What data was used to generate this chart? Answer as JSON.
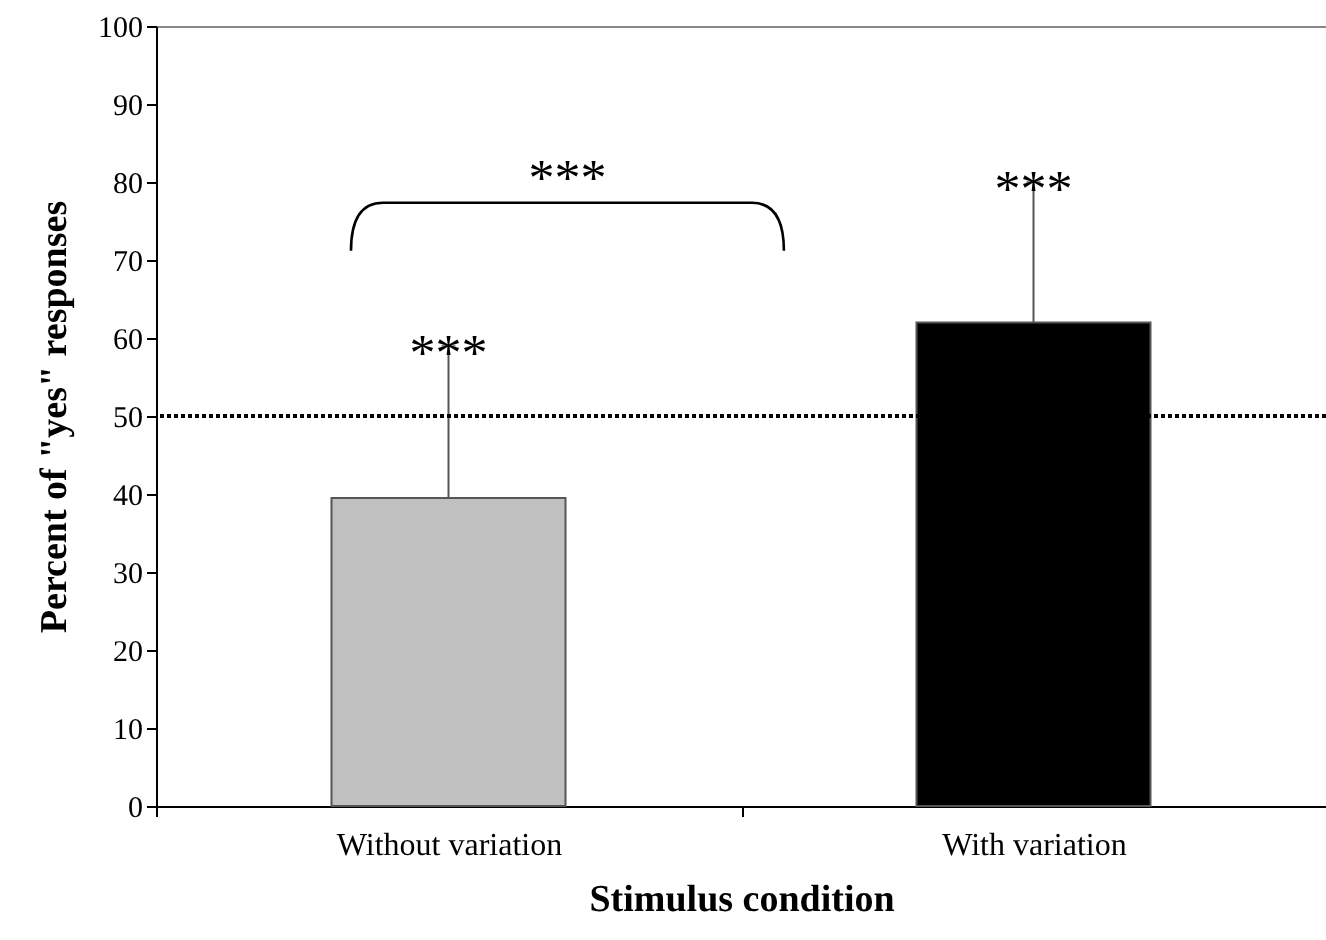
{
  "chart_data": {
    "type": "bar",
    "xlabel": "Stimulus condition",
    "ylabel": "Percent of \"yes\" responses",
    "categories": [
      "Without variation",
      "With variation"
    ],
    "values": [
      39.5,
      62
    ],
    "colors": [
      "#c0c0c0",
      "#000000"
    ],
    "errors": [
      [
        39.5,
        59
      ],
      [
        62,
        80
      ]
    ],
    "ylim": [
      0,
      100
    ],
    "yticks": [
      0,
      10,
      20,
      30,
      40,
      50,
      60,
      70,
      80,
      90,
      100
    ],
    "ref_lines": [
      {
        "axis": "y",
        "value": 50,
        "line_style": "dotted",
        "color": "#000000"
      }
    ],
    "annotations": [
      "***",
      "***",
      "***"
    ],
    "grid": false
  }
}
